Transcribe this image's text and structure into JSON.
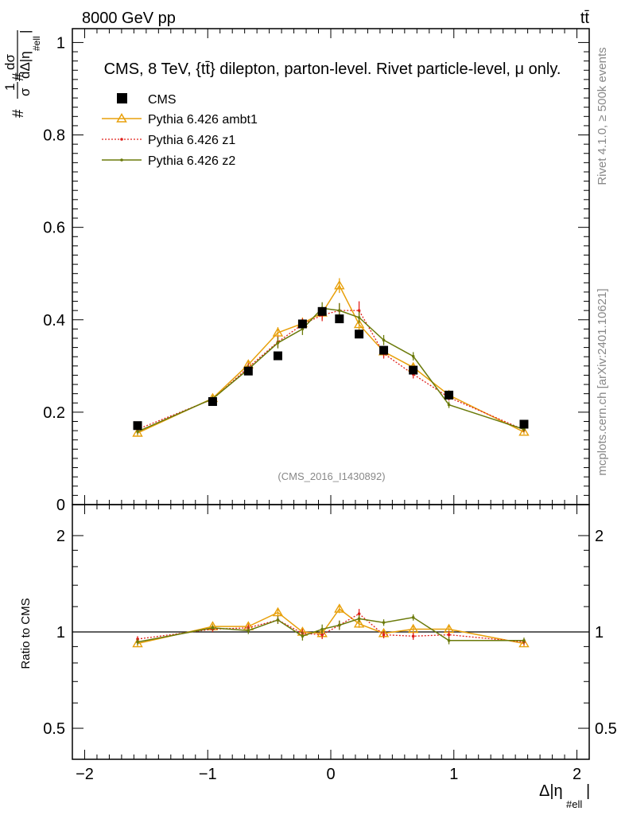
{
  "header": {
    "beam": "8000 GeV pp",
    "process": "tt̄",
    "title": "CMS, 8 TeV, {tt̄} dilepton, parton-level. Rivet particle-level, μ only.",
    "analysis": "(CMS_2016_I1430892)",
    "side_rivet": "Rivet 4.1.0, ≥ 500k events",
    "side_mcplots": "mcplots.cern.ch [arXiv:2401.10621]"
  },
  "chart_data": [
    {
      "type": "line",
      "panel": "main",
      "ylabel": "#frac{1}{#sigma}#frac{d#sigma}{d#Delta|#eta_{#ell}|}",
      "ylabel_parts": {
        "sym1": "#",
        "one": "1",
        "sigma_den": "σ",
        "sym2": "#",
        "dsigma": "dσ",
        "dden": "dΔ|η",
        "sub": "#ell",
        "bar": "|"
      },
      "xlim": [
        -2.1,
        2.1
      ],
      "ylim": [
        0,
        1.03
      ],
      "yticks": [
        0,
        0.2,
        0.4,
        0.6,
        0.8,
        1
      ],
      "ytick_labels": [
        "0",
        "0.2",
        "0.4",
        "0.6",
        "0.8",
        "1"
      ],
      "legend_position": "top-left",
      "series": [
        {
          "name": "CMS",
          "style": "data",
          "color": "#000000",
          "x": [
            -1.57,
            -0.96,
            -0.67,
            -0.43,
            -0.23,
            -0.07,
            0.07,
            0.23,
            0.43,
            0.67,
            0.96,
            1.57
          ],
          "values": [
            0.171,
            0.223,
            0.289,
            0.322,
            0.391,
            0.418,
            0.402,
            0.369,
            0.334,
            0.291,
            0.237,
            0.174
          ],
          "errors": [
            0.004,
            0.004,
            0.004,
            0.004,
            0.004,
            0.004,
            0.004,
            0.004,
            0.004,
            0.004,
            0.004,
            0.004
          ]
        },
        {
          "name": "Pythia 6.426 ambt1",
          "style": "ambt1",
          "color": "#E8A00B",
          "x": [
            -1.57,
            -0.96,
            -0.67,
            -0.43,
            -0.23,
            -0.07,
            0.07,
            0.23,
            0.43,
            0.67,
            0.96,
            1.57
          ],
          "values": [
            0.155,
            0.23,
            0.303,
            0.372,
            0.392,
            0.415,
            0.474,
            0.39,
            0.331,
            0.297,
            0.237,
            0.157
          ],
          "errors": [
            0.006,
            0.006,
            0.009,
            0.012,
            0.013,
            0.013,
            0.016,
            0.013,
            0.011,
            0.009,
            0.007,
            0.005
          ]
        },
        {
          "name": "Pythia 6.426 z1",
          "style": "z1",
          "color": "#E0201B",
          "x": [
            -1.57,
            -0.96,
            -0.67,
            -0.43,
            -0.23,
            -0.07,
            0.07,
            0.23,
            0.43,
            0.67,
            0.96,
            1.57
          ],
          "values": [
            0.163,
            0.228,
            0.297,
            0.352,
            0.39,
            0.41,
            0.42,
            0.42,
            0.327,
            0.282,
            0.232,
            0.162
          ],
          "errors": [
            0.006,
            0.006,
            0.009,
            0.012,
            0.013,
            0.013,
            0.016,
            0.02,
            0.011,
            0.009,
            0.007,
            0.005
          ]
        },
        {
          "name": "Pythia 6.426 z2",
          "style": "z2",
          "color": "#6B7A0A",
          "x": [
            -1.57,
            -0.96,
            -0.67,
            -0.43,
            -0.23,
            -0.07,
            0.07,
            0.23,
            0.43,
            0.67,
            0.96,
            1.57
          ],
          "values": [
            0.158,
            0.229,
            0.293,
            0.35,
            0.38,
            0.425,
            0.42,
            0.405,
            0.356,
            0.321,
            0.216,
            0.163
          ],
          "errors": [
            0.006,
            0.006,
            0.009,
            0.012,
            0.013,
            0.013,
            0.016,
            0.013,
            0.011,
            0.009,
            0.007,
            0.005
          ]
        }
      ]
    },
    {
      "type": "line",
      "panel": "ratio",
      "ylabel": "Ratio to CMS",
      "xlabel": "Δ|η_#ell|",
      "xlabel_parts": {
        "main": "Δ|η",
        "sub": "#ell",
        "bar": "|"
      },
      "scale": "log",
      "xlim": [
        -2.1,
        2.1
      ],
      "ylim": [
        0.4,
        2.5
      ],
      "yticks": [
        0.5,
        1,
        2
      ],
      "ytick_labels": [
        "0.5",
        "1",
        "2"
      ],
      "xticks": [
        -2,
        -1,
        0,
        1,
        2
      ],
      "xtick_labels": [
        "−2",
        "−1",
        "0",
        "1",
        "2"
      ],
      "reference_line": 1,
      "series": [
        {
          "name": "Pythia 6.426 ambt1",
          "style": "ambt1",
          "color": "#E8A00B",
          "x": [
            -1.57,
            -0.96,
            -0.67,
            -0.43,
            -0.23,
            -0.07,
            0.07,
            0.23,
            0.43,
            0.67,
            0.96,
            1.57
          ],
          "values": [
            0.92,
            1.04,
            1.04,
            1.15,
            1.0,
            0.99,
            1.18,
            1.06,
            0.99,
            1.02,
            1.02,
            0.92
          ],
          "errors": [
            0.02,
            0.02,
            0.025,
            0.03,
            0.03,
            0.03,
            0.035,
            0.03,
            0.025,
            0.025,
            0.025,
            0.02
          ]
        },
        {
          "name": "Pythia 6.426 z1",
          "style": "z1",
          "color": "#E0201B",
          "x": [
            -1.57,
            -0.96,
            -0.67,
            -0.43,
            -0.23,
            -0.07,
            0.07,
            0.23,
            0.43,
            0.67,
            0.96,
            1.57
          ],
          "values": [
            0.95,
            1.02,
            1.03,
            1.09,
            0.99,
            0.98,
            1.05,
            1.14,
            0.98,
            0.97,
            0.98,
            0.93
          ],
          "errors": [
            0.02,
            0.02,
            0.025,
            0.03,
            0.03,
            0.03,
            0.035,
            0.04,
            0.025,
            0.025,
            0.025,
            0.02
          ]
        },
        {
          "name": "Pythia 6.426 z2",
          "style": "z2",
          "color": "#6B7A0A",
          "x": [
            -1.57,
            -0.96,
            -0.67,
            -0.43,
            -0.23,
            -0.07,
            0.07,
            0.23,
            0.43,
            0.67,
            0.96,
            1.57
          ],
          "values": [
            0.93,
            1.03,
            1.01,
            1.09,
            0.97,
            1.02,
            1.05,
            1.1,
            1.07,
            1.11,
            0.94,
            0.94
          ],
          "errors": [
            0.02,
            0.02,
            0.025,
            0.03,
            0.03,
            0.035,
            0.035,
            0.03,
            0.025,
            0.025,
            0.025,
            0.02
          ]
        }
      ]
    }
  ]
}
